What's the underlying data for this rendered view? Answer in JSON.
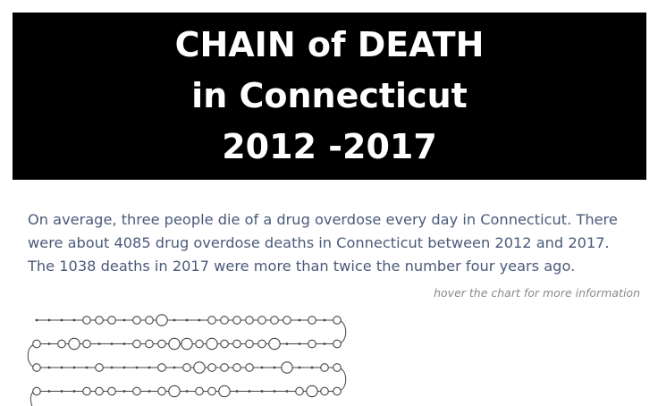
{
  "header": {
    "title_lines": [
      "CHAIN of DEATH",
      "in Connecticut",
      "2012 -2017"
    ]
  },
  "intro": {
    "lines": [
      "On average, three people die of a drug overdose every day in Connecticut. There",
      "were about 4085 drug overdose deaths in Connecticut between 2012 and 2017.",
      "The 1038 deaths in 2017 were more than twice the number four years ago."
    ]
  },
  "hint": "hover the chart for more information",
  "colors": {
    "banner_bg": "#000000",
    "banner_text": "#ffffff",
    "intro_text": "#4a5a7a",
    "hint_text": "#8a8a8a",
    "chain_stroke": "#444444"
  },
  "chart_data": {
    "type": "scatter",
    "encoding": "daily death counts shown as a continuous serpentine chain of circles; circle size reflects count",
    "rows": [
      [
        1,
        0,
        1,
        0,
        2,
        2,
        2,
        0,
        2,
        2,
        3,
        0,
        0,
        0,
        2,
        2,
        2,
        2,
        2,
        2,
        2,
        0,
        2,
        0,
        2
      ],
      [
        2,
        0,
        2,
        3,
        2,
        0,
        0,
        0,
        2,
        2,
        2,
        3,
        3,
        2,
        3,
        2,
        2,
        2,
        2,
        3,
        0,
        0,
        2,
        0,
        2
      ],
      [
        2,
        0,
        0,
        0,
        0,
        2,
        0,
        0,
        0,
        0,
        2,
        0,
        2,
        3,
        2,
        2,
        2,
        2,
        0,
        0,
        3,
        0,
        0,
        2,
        2
      ],
      [
        2,
        0,
        0,
        0,
        2,
        2,
        2,
        0,
        2,
        0,
        2,
        3,
        0,
        2,
        2,
        3,
        0,
        0,
        0,
        0,
        0,
        2,
        3,
        2,
        2
      ]
    ]
  }
}
